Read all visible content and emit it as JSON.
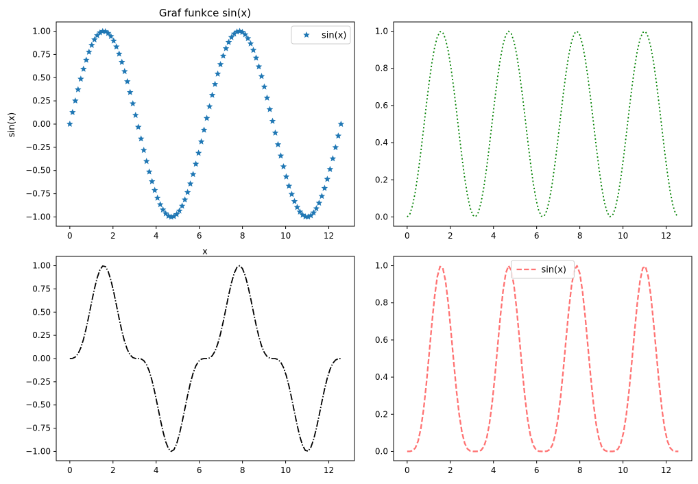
{
  "chart_data": [
    {
      "type": "scatter",
      "title": "Graf funkce sin(x)",
      "xlabel": "x",
      "ylabel": "sin(x)",
      "xlim": [
        -0.63,
        13.19
      ],
      "ylim": [
        -1.1,
        1.1
      ],
      "xticks": [
        "0",
        "2",
        "4",
        "6",
        "8",
        "10",
        "12"
      ],
      "yticks": [
        "−1.00",
        "−0.75",
        "−0.50",
        "−0.25",
        "0.00",
        "0.25",
        "0.50",
        "0.75",
        "1.00"
      ],
      "grid": false,
      "legend_position": "upper right",
      "series": [
        {
          "name": "sin(x)",
          "function": "sin(x)",
          "x_range": [
            0,
            12.566
          ],
          "points": 100,
          "marker": "star",
          "color": "#1f77b4"
        }
      ]
    },
    {
      "type": "line",
      "title": "",
      "xlabel": "",
      "ylabel": "",
      "xlim": [
        -0.63,
        13.19
      ],
      "ylim": [
        -0.05,
        1.05
      ],
      "xticks": [
        "0",
        "2",
        "4",
        "6",
        "8",
        "10",
        "12"
      ],
      "yticks": [
        "0.0",
        "0.2",
        "0.4",
        "0.6",
        "0.8",
        "1.0"
      ],
      "grid": false,
      "series": [
        {
          "function": "sin(x)^2",
          "x_range": [
            0,
            12.566
          ],
          "points": 100,
          "linestyle": "dotted",
          "color": "#008000"
        }
      ]
    },
    {
      "type": "line",
      "title": "",
      "xlabel": "",
      "ylabel": "",
      "xlim": [
        -0.63,
        13.19
      ],
      "ylim": [
        -1.1,
        1.1
      ],
      "xticks": [
        "0",
        "2",
        "4",
        "6",
        "8",
        "10",
        "12"
      ],
      "yticks": [
        "−1.00",
        "−0.75",
        "−0.50",
        "−0.25",
        "0.00",
        "0.25",
        "0.50",
        "0.75",
        "1.00"
      ],
      "grid": false,
      "series": [
        {
          "function": "sin(x)^3",
          "x_range": [
            0,
            12.566
          ],
          "points": 100,
          "linestyle": "dashdot",
          "color": "#000000"
        }
      ]
    },
    {
      "type": "line",
      "title": "",
      "xlabel": "",
      "ylabel": "",
      "xlim": [
        -0.63,
        13.19
      ],
      "ylim": [
        -0.05,
        1.05
      ],
      "xticks": [
        "0",
        "2",
        "4",
        "6",
        "8",
        "10",
        "12"
      ],
      "yticks": [
        "0.0",
        "0.2",
        "0.4",
        "0.6",
        "0.8",
        "1.0"
      ],
      "grid": false,
      "legend_position": "upper center",
      "series": [
        {
          "name": "sin(x)",
          "function": "sin(x)^4",
          "x_range": [
            0,
            12.566
          ],
          "points": 100,
          "linestyle": "dashed",
          "color": "#ff0000",
          "alpha": 0.55
        }
      ]
    }
  ]
}
